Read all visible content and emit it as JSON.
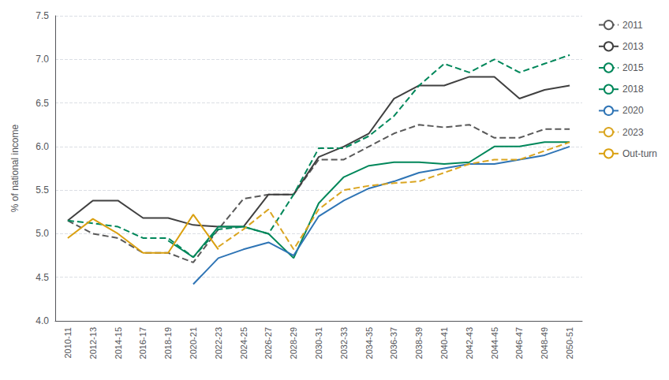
{
  "chart_data": {
    "type": "line",
    "categories": [
      "2010-11",
      "2012-13",
      "2014-15",
      "2016-17",
      "2018-19",
      "2020-21",
      "2022-23",
      "2024-25",
      "2026-27",
      "2028-29",
      "2030-31",
      "2032-33",
      "2034-35",
      "2036-37",
      "2038-39",
      "2040-41",
      "2042-43",
      "2044-45",
      "2046-47",
      "2048-49",
      "2050-51"
    ],
    "series": [
      {
        "name": "2011",
        "color": "#595959",
        "line_style": "dashed",
        "values": [
          5.15,
          5.0,
          4.95,
          4.78,
          4.78,
          4.67,
          5.05,
          5.4,
          5.45,
          5.45,
          5.85,
          5.85,
          6.0,
          6.15,
          6.25,
          6.22,
          6.25,
          6.1,
          6.1,
          6.2,
          6.2
        ]
      },
      {
        "name": "2013",
        "color": "#404040",
        "line_style": "solid",
        "values": [
          5.15,
          5.38,
          5.38,
          5.18,
          5.18,
          5.1,
          5.08,
          5.08,
          5.45,
          5.45,
          5.88,
          6.0,
          6.15,
          6.55,
          6.7,
          6.7,
          6.8,
          6.8,
          6.55,
          6.65,
          6.7
        ]
      },
      {
        "name": "2015",
        "color": "#00875A",
        "line_style": "dashed",
        "values": [
          5.15,
          5.12,
          5.08,
          4.95,
          4.95,
          4.73,
          5.05,
          5.08,
          5.0,
          5.45,
          5.98,
          5.98,
          6.12,
          6.35,
          6.7,
          6.95,
          6.85,
          7.0,
          6.85,
          6.95,
          7.05
        ]
      },
      {
        "name": "2018",
        "color": "#00875A",
        "line_style": "solid",
        "values": [
          null,
          null,
          null,
          null,
          4.92,
          4.73,
          5.08,
          5.08,
          5.0,
          4.72,
          5.35,
          5.65,
          5.78,
          5.82,
          5.82,
          5.8,
          5.82,
          6.0,
          6.0,
          6.05,
          6.05
        ]
      },
      {
        "name": "2020",
        "color": "#2E74B5",
        "line_style": "solid",
        "values": [
          null,
          null,
          null,
          null,
          null,
          4.42,
          4.72,
          4.82,
          4.9,
          4.75,
          5.2,
          5.38,
          5.52,
          5.6,
          5.7,
          5.75,
          5.8,
          5.8,
          5.85,
          5.9,
          6.0
        ]
      },
      {
        "name": "2023",
        "color": "#DAA520",
        "line_style": "dashed",
        "values": [
          null,
          null,
          null,
          null,
          null,
          null,
          4.85,
          5.05,
          5.28,
          4.82,
          5.28,
          5.5,
          5.55,
          5.58,
          5.6,
          5.7,
          5.8,
          5.85,
          5.85,
          5.95,
          6.05
        ]
      },
      {
        "name": "Out-turn",
        "color": "#DAA010",
        "line_style": "solid",
        "values": [
          4.95,
          5.17,
          5.0,
          4.78,
          4.78,
          5.22,
          4.82,
          null,
          null,
          null,
          null,
          null,
          null,
          null,
          null,
          null,
          null,
          null,
          null,
          null,
          null
        ]
      }
    ],
    "ylabel": "% of national income",
    "ylim": [
      4.0,
      7.5
    ],
    "yticks": [
      {
        "value": 4.0,
        "label": "4.0"
      },
      4.5,
      {
        "value": 5.0,
        "label": "5.0"
      },
      5.5,
      {
        "value": 6.0,
        "label": "6.0"
      },
      6.5,
      {
        "value": 7.0,
        "label": "7.0"
      },
      7.5
    ],
    "grid": true,
    "legend": "right"
  }
}
